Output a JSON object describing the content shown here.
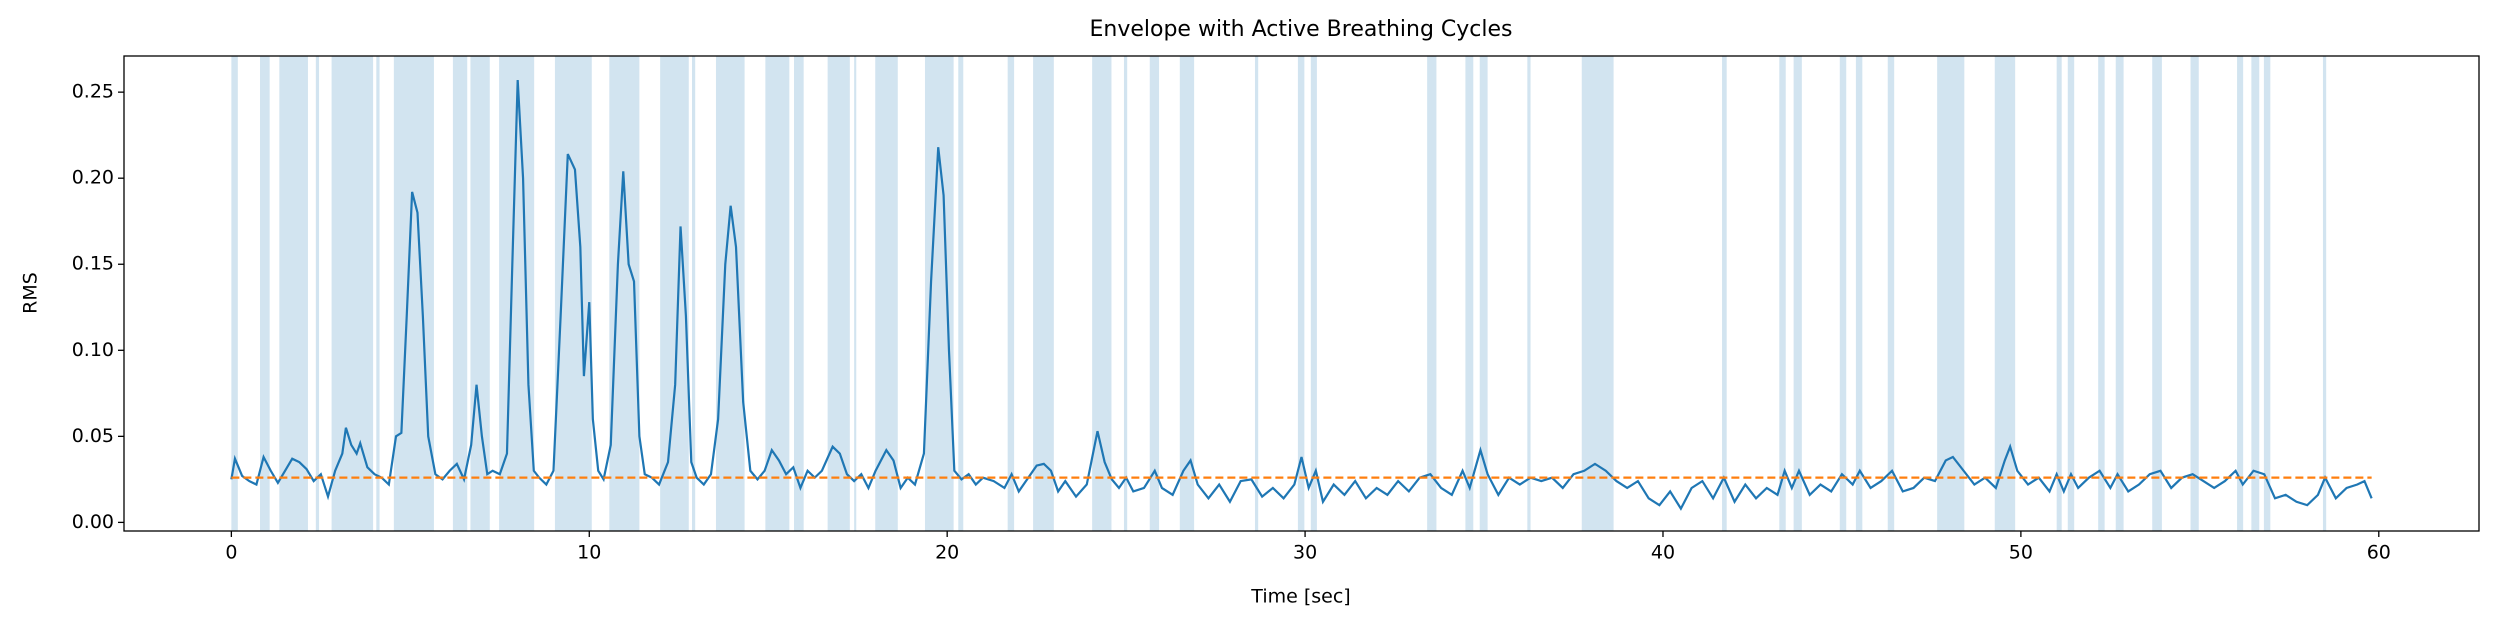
{
  "chart_data": {
    "type": "line",
    "title": "Envelope with Active Breathing Cycles",
    "x_label": "Time [sec]",
    "y_label": "RMS",
    "xlim": [
      -3,
      62.8
    ],
    "ylim": [
      -0.005,
      0.271
    ],
    "xticks": [
      0,
      10,
      20,
      30,
      40,
      50,
      60
    ],
    "yticks": [
      {
        "value": 0,
        "label": "0.00"
      },
      {
        "value": 0.05,
        "label": "0.05"
      },
      {
        "value": 0.1,
        "label": "0.10"
      },
      {
        "value": 0.15,
        "label": "0.15"
      },
      {
        "value": 0.2,
        "label": "0.20"
      },
      {
        "value": 0.25,
        "label": "0.25"
      }
    ],
    "span_color": "#1f77b4",
    "span_opacity": 0.2,
    "spans": [
      [
        0,
        0.18
      ],
      [
        0.8,
        1.07
      ],
      [
        1.34,
        2.14
      ],
      [
        2.36,
        2.45
      ],
      [
        2.8,
        3.96
      ],
      [
        4.05,
        4.14
      ],
      [
        4.54,
        5.66
      ],
      [
        6.19,
        6.59
      ],
      [
        6.68,
        7.22
      ],
      [
        7.48,
        8.46
      ],
      [
        9.04,
        10.07
      ],
      [
        10.56,
        11.4
      ],
      [
        11.98,
        12.78
      ],
      [
        12.87,
        12.96
      ],
      [
        13.54,
        14.34
      ],
      [
        14.92,
        15.59
      ],
      [
        15.72,
        15.99
      ],
      [
        16.66,
        17.28
      ],
      [
        17.4,
        17.46
      ],
      [
        17.99,
        18.62
      ],
      [
        19.38,
        20.18
      ],
      [
        20.31,
        20.45
      ],
      [
        21.69,
        21.87
      ],
      [
        22.4,
        22.98
      ],
      [
        24.05,
        24.59
      ],
      [
        24.94,
        25.03
      ],
      [
        25.66,
        25.92
      ],
      [
        26.5,
        26.9
      ],
      [
        28.6,
        28.69
      ],
      [
        29.8,
        29.98
      ],
      [
        30.16,
        30.33
      ],
      [
        33.41,
        33.67
      ],
      [
        34.48,
        34.7
      ],
      [
        34.88,
        35.1
      ],
      [
        36.21,
        36.3
      ],
      [
        37.73,
        38.62
      ],
      [
        41.65,
        41.78
      ],
      [
        43.25,
        43.43
      ],
      [
        43.65,
        43.88
      ],
      [
        44.94,
        45.12
      ],
      [
        45.39,
        45.57
      ],
      [
        46.28,
        46.46
      ],
      [
        47.66,
        48.42
      ],
      [
        49.27,
        49.84
      ],
      [
        51.0,
        51.14
      ],
      [
        51.31,
        51.49
      ],
      [
        52.16,
        52.34
      ],
      [
        52.65,
        52.87
      ],
      [
        53.67,
        53.94
      ],
      [
        54.74,
        54.97
      ],
      [
        56.04,
        56.21
      ],
      [
        56.44,
        56.66
      ],
      [
        56.79,
        56.97
      ],
      [
        58.44,
        58.53
      ]
    ],
    "threshold": {
      "value": 0.026,
      "x": [
        0,
        59.8
      ],
      "color": "#ff7f0e"
    },
    "series": [
      {
        "color": "#1f77b4",
        "x": [
          0,
          0.1,
          0.3,
          0.5,
          0.7,
          0.9,
          1.1,
          1.3,
          1.5,
          1.7,
          1.9,
          2.1,
          2.3,
          2.5,
          2.7,
          2.9,
          3.1,
          3.2,
          3.35,
          3.5,
          3.6,
          3.8,
          4.0,
          4.2,
          4.4,
          4.6,
          4.75,
          4.9,
          5.05,
          5.2,
          5.35,
          5.5,
          5.7,
          5.9,
          6.1,
          6.3,
          6.5,
          6.7,
          6.85,
          7.0,
          7.15,
          7.3,
          7.5,
          7.7,
          7.85,
          8.0,
          8.15,
          8.3,
          8.45,
          8.6,
          8.8,
          9.0,
          9.2,
          9.4,
          9.6,
          9.75,
          9.85,
          10.0,
          10.1,
          10.25,
          10.4,
          10.6,
          10.8,
          10.95,
          11.1,
          11.25,
          11.4,
          11.55,
          11.75,
          11.95,
          12.2,
          12.4,
          12.55,
          12.7,
          12.85,
          13.0,
          13.2,
          13.4,
          13.6,
          13.8,
          13.95,
          14.1,
          14.3,
          14.5,
          14.7,
          14.9,
          15.1,
          15.3,
          15.5,
          15.7,
          15.9,
          16.1,
          16.3,
          16.5,
          16.8,
          17.0,
          17.2,
          17.4,
          17.6,
          17.8,
          18.0,
          18.3,
          18.5,
          18.7,
          18.9,
          19.1,
          19.35,
          19.55,
          19.75,
          19.9,
          20.05,
          20.2,
          20.4,
          20.6,
          20.8,
          21.0,
          21.3,
          21.6,
          21.8,
          22.0,
          22.2,
          22.5,
          22.7,
          22.9,
          23.1,
          23.3,
          23.6,
          23.9,
          24.2,
          24.4,
          24.6,
          24.8,
          25.0,
          25.2,
          25.5,
          25.8,
          26.0,
          26.3,
          26.6,
          26.8,
          27.0,
          27.3,
          27.6,
          27.9,
          28.2,
          28.5,
          28.8,
          29.1,
          29.4,
          29.7,
          29.9,
          30.1,
          30.3,
          30.5,
          30.8,
          31.1,
          31.4,
          31.7,
          32.0,
          32.3,
          32.6,
          32.9,
          33.2,
          33.5,
          33.8,
          34.1,
          34.4,
          34.6,
          34.9,
          35.1,
          35.4,
          35.7,
          36.0,
          36.3,
          36.6,
          36.9,
          37.2,
          37.5,
          37.8,
          38.1,
          38.4,
          38.7,
          39.0,
          39.3,
          39.6,
          39.9,
          40.2,
          40.5,
          40.8,
          41.1,
          41.4,
          41.7,
          42.0,
          42.3,
          42.6,
          42.9,
          43.2,
          43.4,
          43.6,
          43.8,
          44.1,
          44.4,
          44.7,
          45.0,
          45.3,
          45.5,
          45.8,
          46.1,
          46.4,
          46.7,
          47.0,
          47.3,
          47.6,
          47.9,
          48.1,
          48.4,
          48.7,
          49.0,
          49.3,
          49.55,
          49.7,
          49.9,
          50.2,
          50.5,
          50.8,
          51.0,
          51.2,
          51.4,
          51.6,
          51.9,
          52.2,
          52.5,
          52.7,
          53.0,
          53.3,
          53.6,
          53.9,
          54.2,
          54.5,
          54.8,
          55.1,
          55.4,
          55.7,
          56.0,
          56.2,
          56.5,
          56.8,
          57.1,
          57.4,
          57.7,
          58.0,
          58.3,
          58.5,
          58.8,
          59.1,
          59.4,
          59.6,
          59.8
        ],
        "values": [
          0.025,
          0.037,
          0.027,
          0.024,
          0.022,
          0.038,
          0.03,
          0.023,
          0.03,
          0.037,
          0.035,
          0.031,
          0.024,
          0.028,
          0.015,
          0.03,
          0.04,
          0.055,
          0.045,
          0.04,
          0.046,
          0.032,
          0.028,
          0.026,
          0.022,
          0.05,
          0.052,
          0.12,
          0.192,
          0.18,
          0.12,
          0.05,
          0.028,
          0.025,
          0.03,
          0.034,
          0.025,
          0.045,
          0.08,
          0.05,
          0.028,
          0.03,
          0.028,
          0.04,
          0.15,
          0.257,
          0.2,
          0.08,
          0.03,
          0.026,
          0.022,
          0.03,
          0.12,
          0.214,
          0.205,
          0.16,
          0.085,
          0.128,
          0.06,
          0.03,
          0.025,
          0.045,
          0.15,
          0.204,
          0.15,
          0.14,
          0.05,
          0.028,
          0.026,
          0.022,
          0.035,
          0.08,
          0.172,
          0.12,
          0.035,
          0.026,
          0.022,
          0.028,
          0.06,
          0.15,
          0.184,
          0.16,
          0.07,
          0.03,
          0.025,
          0.03,
          0.042,
          0.036,
          0.028,
          0.032,
          0.02,
          0.03,
          0.026,
          0.03,
          0.044,
          0.04,
          0.028,
          0.024,
          0.028,
          0.02,
          0.03,
          0.042,
          0.036,
          0.02,
          0.026,
          0.022,
          0.04,
          0.14,
          0.218,
          0.19,
          0.1,
          0.03,
          0.025,
          0.028,
          0.022,
          0.026,
          0.024,
          0.02,
          0.028,
          0.018,
          0.024,
          0.033,
          0.034,
          0.03,
          0.018,
          0.024,
          0.015,
          0.022,
          0.053,
          0.035,
          0.025,
          0.02,
          0.026,
          0.018,
          0.02,
          0.03,
          0.02,
          0.016,
          0.03,
          0.036,
          0.022,
          0.014,
          0.022,
          0.012,
          0.024,
          0.025,
          0.015,
          0.02,
          0.014,
          0.022,
          0.038,
          0.02,
          0.03,
          0.012,
          0.022,
          0.016,
          0.024,
          0.014,
          0.02,
          0.016,
          0.024,
          0.018,
          0.026,
          0.028,
          0.02,
          0.016,
          0.03,
          0.02,
          0.042,
          0.028,
          0.016,
          0.026,
          0.022,
          0.026,
          0.024,
          0.026,
          0.02,
          0.028,
          0.03,
          0.034,
          0.03,
          0.024,
          0.02,
          0.024,
          0.014,
          0.01,
          0.018,
          0.008,
          0.02,
          0.024,
          0.014,
          0.026,
          0.012,
          0.022,
          0.014,
          0.02,
          0.016,
          0.03,
          0.02,
          0.03,
          0.016,
          0.022,
          0.018,
          0.028,
          0.022,
          0.03,
          0.02,
          0.024,
          0.03,
          0.018,
          0.02,
          0.026,
          0.024,
          0.036,
          0.038,
          0.03,
          0.022,
          0.026,
          0.02,
          0.036,
          0.044,
          0.03,
          0.022,
          0.026,
          0.018,
          0.028,
          0.018,
          0.028,
          0.02,
          0.026,
          0.03,
          0.02,
          0.028,
          0.018,
          0.022,
          0.028,
          0.03,
          0.02,
          0.026,
          0.028,
          0.024,
          0.02,
          0.024,
          0.03,
          0.022,
          0.03,
          0.028,
          0.014,
          0.016,
          0.012,
          0.01,
          0.016,
          0.026,
          0.014,
          0.02,
          0.022,
          0.024,
          0.014
        ]
      }
    ]
  }
}
